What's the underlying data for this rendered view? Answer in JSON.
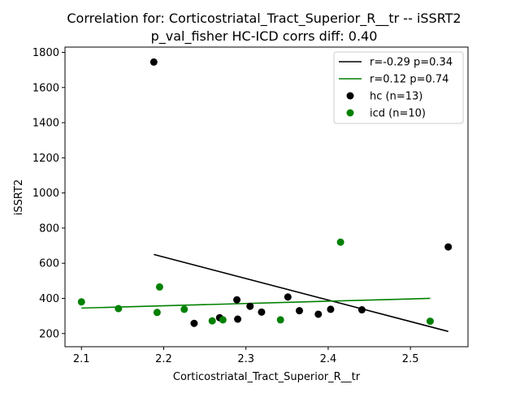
{
  "chart_data": {
    "type": "scatter",
    "title": "Correlation for: Corticostriatal_Tract_Superior_R__tr -- iSSRT2",
    "subtitle": "p_val_fisher HC-ICD corrs diff: 0.40",
    "xlabel": "Corticostriatal_Tract_Superior_R__tr",
    "ylabel": "iSSRT2",
    "xlim": [
      2.08,
      2.57
    ],
    "ylim": [
      125,
      1830
    ],
    "x_ticks": [
      2.1,
      2.2,
      2.3,
      2.4,
      2.5
    ],
    "x_tick_labels": [
      "2.1",
      "2.2",
      "2.3",
      "2.4",
      "2.5"
    ],
    "y_ticks": [
      200,
      400,
      600,
      800,
      1000,
      1200,
      1400,
      1600,
      1800
    ],
    "y_tick_labels": [
      "200",
      "400",
      "600",
      "800",
      "1000",
      "1200",
      "1400",
      "1600",
      "1800"
    ],
    "grid": false,
    "legend_position": "top-right",
    "series": [
      {
        "name": "hc (n=13)",
        "color": "#000000",
        "points": [
          [
            2.188,
            1745
          ],
          [
            2.237,
            258
          ],
          [
            2.268,
            290
          ],
          [
            2.289,
            392
          ],
          [
            2.29,
            282
          ],
          [
            2.305,
            355
          ],
          [
            2.319,
            322
          ],
          [
            2.351,
            408
          ],
          [
            2.365,
            330
          ],
          [
            2.388,
            310
          ],
          [
            2.403,
            338
          ],
          [
            2.441,
            335
          ],
          [
            2.546,
            693
          ]
        ]
      },
      {
        "name": "icd (n=10)",
        "color": "#008000",
        "points": [
          [
            2.1,
            380
          ],
          [
            2.145,
            342
          ],
          [
            2.192,
            320
          ],
          [
            2.195,
            465
          ],
          [
            2.225,
            338
          ],
          [
            2.259,
            272
          ],
          [
            2.272,
            278
          ],
          [
            2.342,
            278
          ],
          [
            2.415,
            720
          ],
          [
            2.524,
            270
          ]
        ]
      }
    ],
    "fit_lines": [
      {
        "name": "r=-0.29 p=0.34",
        "color": "#000000",
        "x": [
          2.188,
          2.546
        ],
        "y": [
          650,
          212
        ]
      },
      {
        "name": "r=0.12 p=0.74",
        "color": "#008000",
        "x": [
          2.1,
          2.524
        ],
        "y": [
          345,
          400
        ]
      }
    ]
  }
}
